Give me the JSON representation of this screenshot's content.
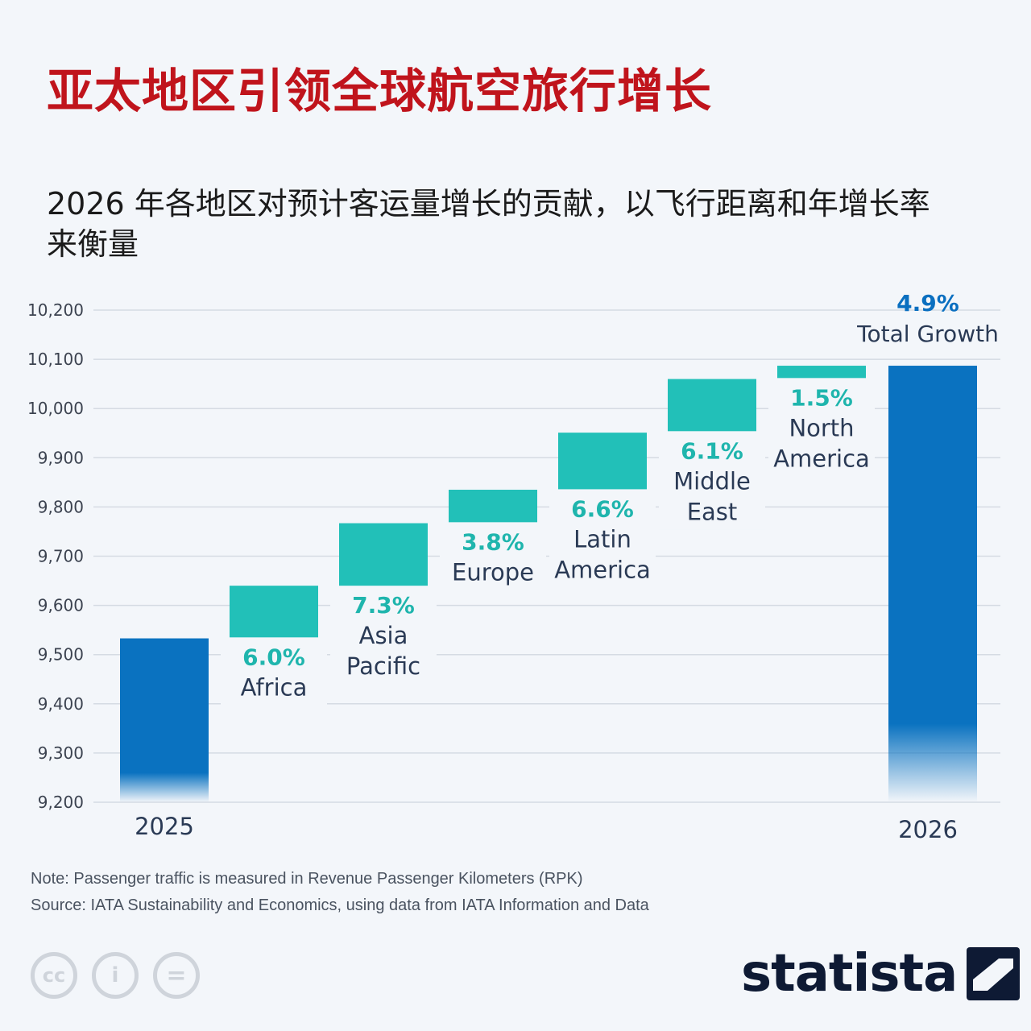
{
  "title": "亚太地区引领全球航空旅行增长",
  "subtitle": "2026 年各地区对预计客运量增长的贡献，以飞行距离和年增长率来衡量",
  "footer": {
    "note": "Note: Passenger traffic is measured in Revenue Passenger Kilometers (RPK)",
    "source": "Source: IATA Sustainability and Economics, using data from IATA Information and Data",
    "brand": "statista",
    "cc_icons": [
      "cc",
      "i",
      "="
    ]
  },
  "colors": {
    "total_bar": "#0a72c0",
    "segment": "#22c0b8",
    "growth_label": "#1fb5ad",
    "total_label": "#0a6fc0",
    "axis_text": "#3c4350",
    "label_text": "#2a3a55"
  },
  "chart_data": {
    "type": "waterfall",
    "title": "",
    "ylim": [
      9200,
      10200
    ],
    "yticks": [
      9200,
      9300,
      9400,
      9500,
      9600,
      9700,
      9800,
      9900,
      10000,
      10100,
      10200
    ],
    "y_tick_labels": [
      "9,200",
      "9,300",
      "9,400",
      "9,500",
      "9,600",
      "9,700",
      "9,800",
      "9,900",
      "10,000",
      "10,100",
      "10,200"
    ],
    "grid": true,
    "start": {
      "label": "2025",
      "value": 9533
    },
    "segments": [
      {
        "name": "Africa",
        "lines": [
          "Africa"
        ],
        "from": 9535,
        "to": 9640,
        "growth": "6.0%"
      },
      {
        "name": "Asia Pacific",
        "lines": [
          "Asia",
          "Pacific"
        ],
        "from": 9640,
        "to": 9767,
        "growth": "7.3%"
      },
      {
        "name": "Europe",
        "lines": [
          "Europe"
        ],
        "from": 9769,
        "to": 9835,
        "growth": "3.8%"
      },
      {
        "name": "Latin America",
        "lines": [
          "Latin",
          "America"
        ],
        "from": 9836,
        "to": 9951,
        "growth": "6.6%"
      },
      {
        "name": "Middle East",
        "lines": [
          "Middle",
          "East"
        ],
        "from": 9954,
        "to": 10060,
        "growth": "6.1%"
      },
      {
        "name": "North America",
        "lines": [
          "North",
          "America"
        ],
        "from": 10062,
        "to": 10087,
        "growth": "1.5%"
      }
    ],
    "end": {
      "label": "2026",
      "value": 10087,
      "growth": "4.9%",
      "growth_label": "Total Growth"
    }
  }
}
